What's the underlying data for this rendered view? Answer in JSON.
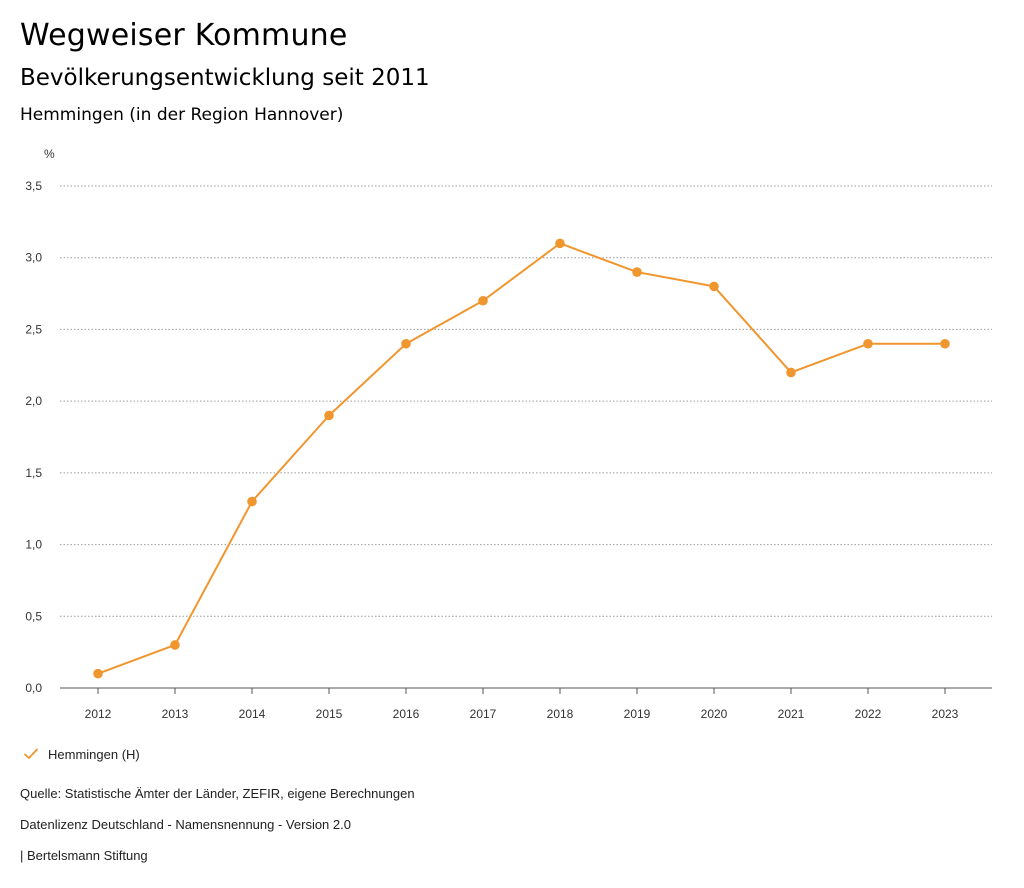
{
  "header": {
    "title": "Wegweiser Kommune",
    "subtitle": "Bevölkerungsentwicklung seit 2011",
    "region": "Hemmingen (in der Region Hannover)"
  },
  "chart_data": {
    "type": "line",
    "title": "Bevölkerungsentwicklung seit 2011",
    "ylabel": "%",
    "xlabel": "",
    "categories": [
      "2012",
      "2013",
      "2014",
      "2015",
      "2016",
      "2017",
      "2018",
      "2019",
      "2020",
      "2021",
      "2022",
      "2023"
    ],
    "ylim": [
      0,
      3.5
    ],
    "yticks": [
      "0,0",
      "0,5",
      "1,0",
      "1,5",
      "2,0",
      "2,5",
      "3,0",
      "3,5"
    ],
    "grid": true,
    "legend_position": "bottom-left",
    "series": [
      {
        "name": "Hemmingen (H)",
        "color": "#f0962e",
        "values": [
          0.1,
          0.3,
          1.3,
          1.9,
          2.4,
          2.7,
          3.1,
          2.9,
          2.8,
          2.2,
          2.4,
          2.4
        ]
      }
    ]
  },
  "footer": {
    "source": "Quelle: Statistische Ämter der Länder, ZEFIR, eigene Berechnungen",
    "license": "Datenlizenz Deutschland - Namensnennung - Version 2.0",
    "publisher": "| Bertelsmann Stiftung"
  }
}
